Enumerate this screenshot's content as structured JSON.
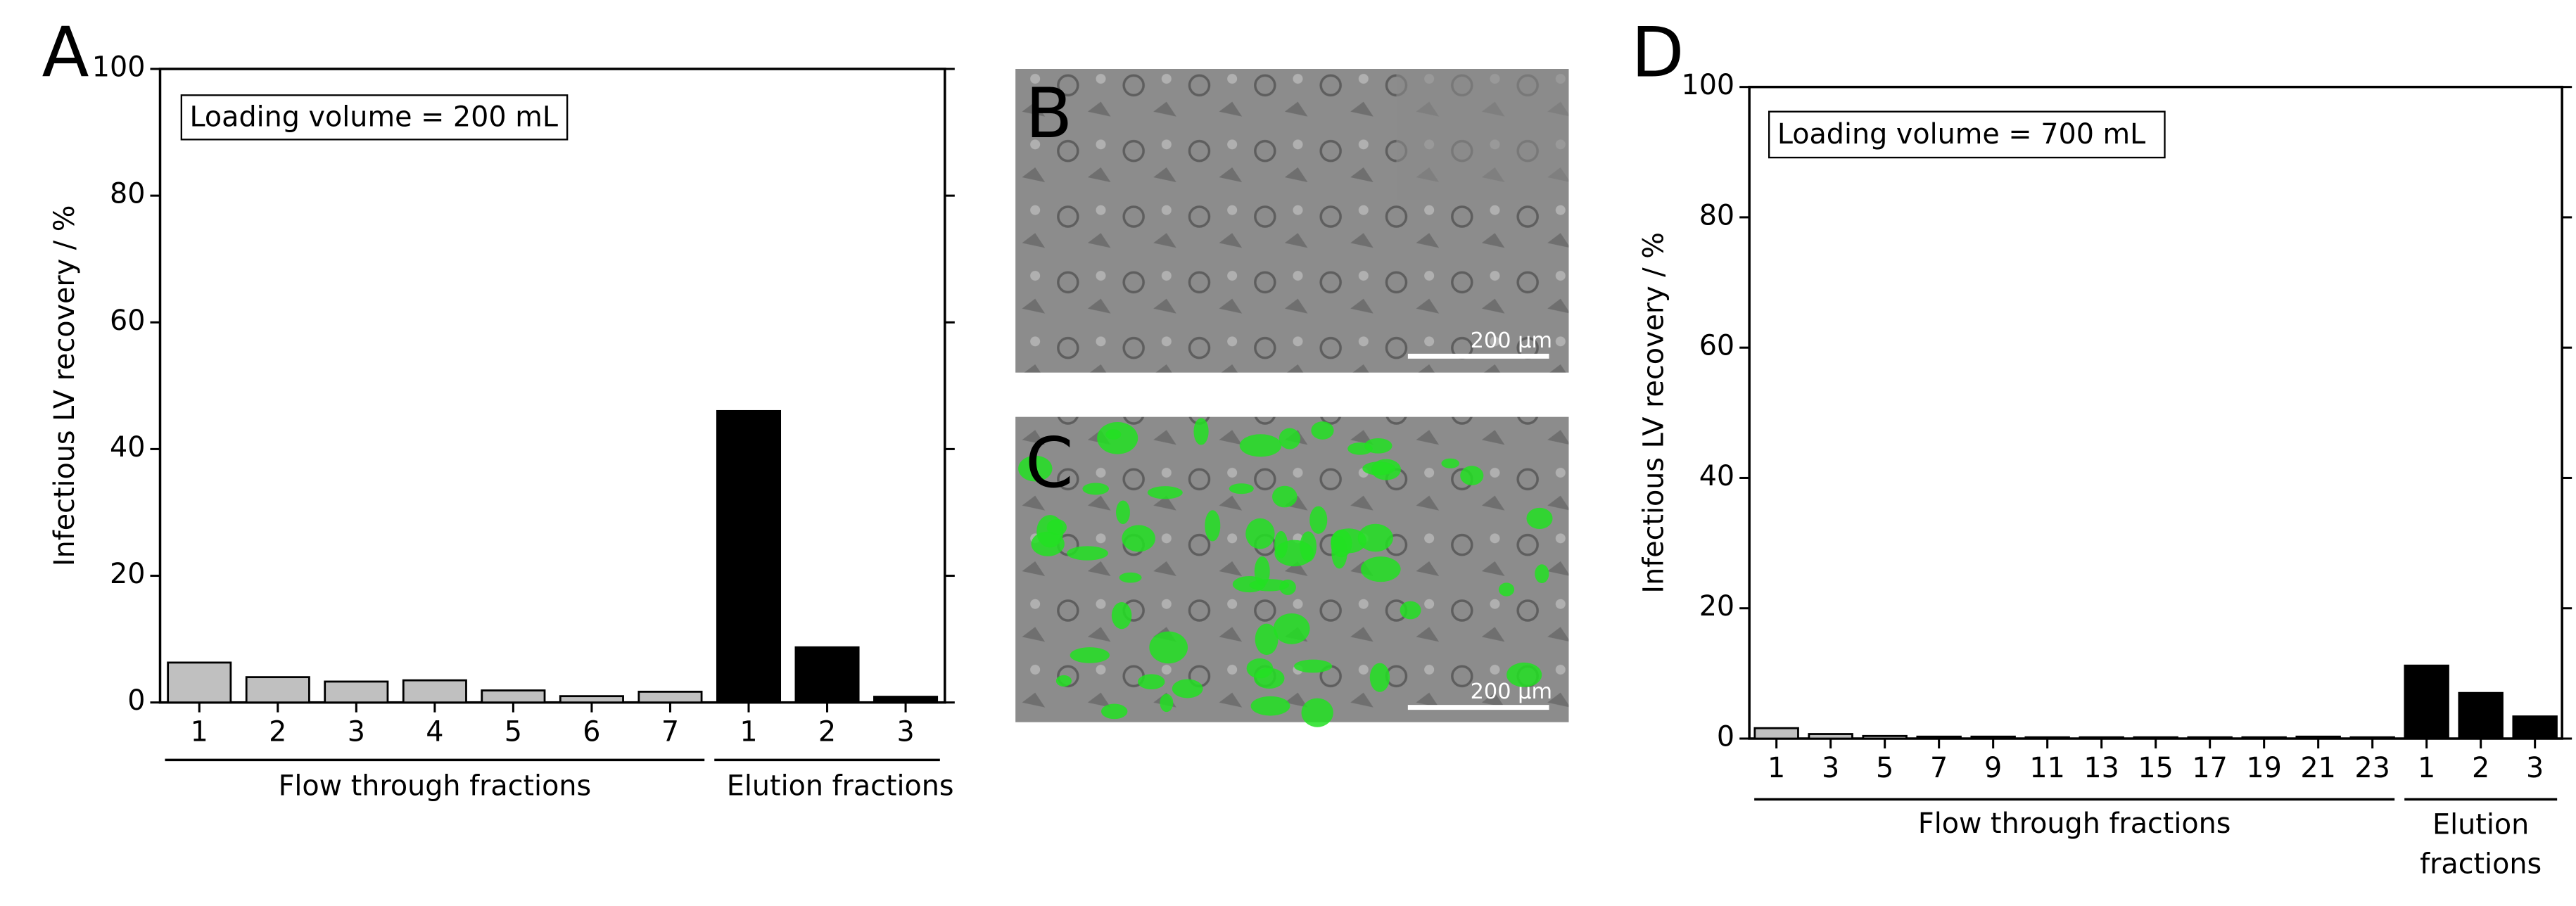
{
  "chart_data": [
    {
      "type": "bar",
      "panel": "A",
      "annotation": "Loading volume = 200 mL",
      "y_label": "Infectious LV recovery / %",
      "ylim": [
        0,
        100
      ],
      "yticks": [
        0,
        20,
        40,
        60,
        80,
        100
      ],
      "series": [
        {
          "name": "Flow through fractions",
          "color": "#c0c0c0",
          "categories": [
            "1",
            "2",
            "3",
            "4",
            "5",
            "6",
            "7"
          ],
          "values": [
            6.3,
            4.0,
            3.3,
            3.5,
            1.9,
            1.0,
            1.7
          ]
        },
        {
          "name": "Elution fractions",
          "color": "#000000",
          "categories": [
            "1",
            "2",
            "3"
          ],
          "values": [
            46.0,
            8.7,
            0.9
          ]
        }
      ]
    },
    {
      "type": "bar",
      "panel": "D",
      "annotation": "Loading volume = 700 mL",
      "y_label": "Infectious LV recovery / %",
      "ylim": [
        0,
        100
      ],
      "yticks": [
        0,
        20,
        40,
        60,
        80,
        100
      ],
      "series": [
        {
          "name": "Flow through fractions",
          "color": "#c0c0c0",
          "categories": [
            "1",
            "3",
            "5",
            "7",
            "9",
            "11",
            "13",
            "15",
            "17",
            "19",
            "21",
            "23"
          ],
          "values": [
            1.6,
            0.7,
            0.4,
            0.3,
            0.3,
            0.2,
            0.2,
            0.2,
            0.2,
            0.2,
            0.3,
            0.2
          ]
        },
        {
          "name": "Elution fractions",
          "color": "#000000",
          "categories": [
            "1",
            "2",
            "3"
          ],
          "values": [
            11.2,
            7.0,
            3.4
          ]
        }
      ]
    }
  ],
  "images": [
    {
      "label": "B",
      "scale_bar": "200 µm"
    },
    {
      "label": "C",
      "scale_bar": "200 µm"
    }
  ]
}
